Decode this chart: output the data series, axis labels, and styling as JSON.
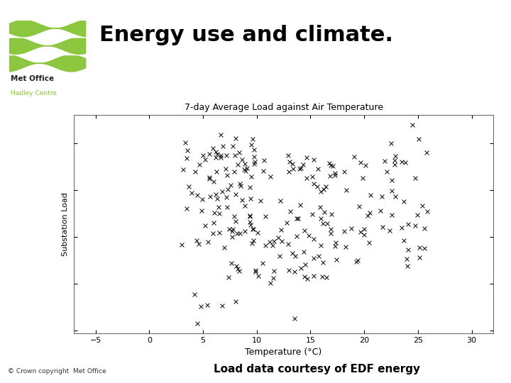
{
  "title": "Energy use and climate.",
  "chart_title": "7-day Average Load against Air Temperature",
  "xlabel": "Temperature (°C)",
  "ylabel": "Substation Load",
  "xlim": [
    -7,
    32
  ],
  "xticks": [
    -5,
    0,
    5,
    10,
    15,
    20,
    25,
    30
  ],
  "copyright_text": "© Crown copyright  Met Office",
  "load_text": "Load data courtesy of EDF energy",
  "background_color": "#ffffff",
  "scatter_color": "#000000",
  "wave_color": "#8dc63f",
  "title_fontsize": 22,
  "chart_title_fontsize": 9,
  "xlabel_fontsize": 9,
  "ylabel_fontsize": 8,
  "figure_width": 7.2,
  "figure_height": 5.4,
  "dpi": 100
}
